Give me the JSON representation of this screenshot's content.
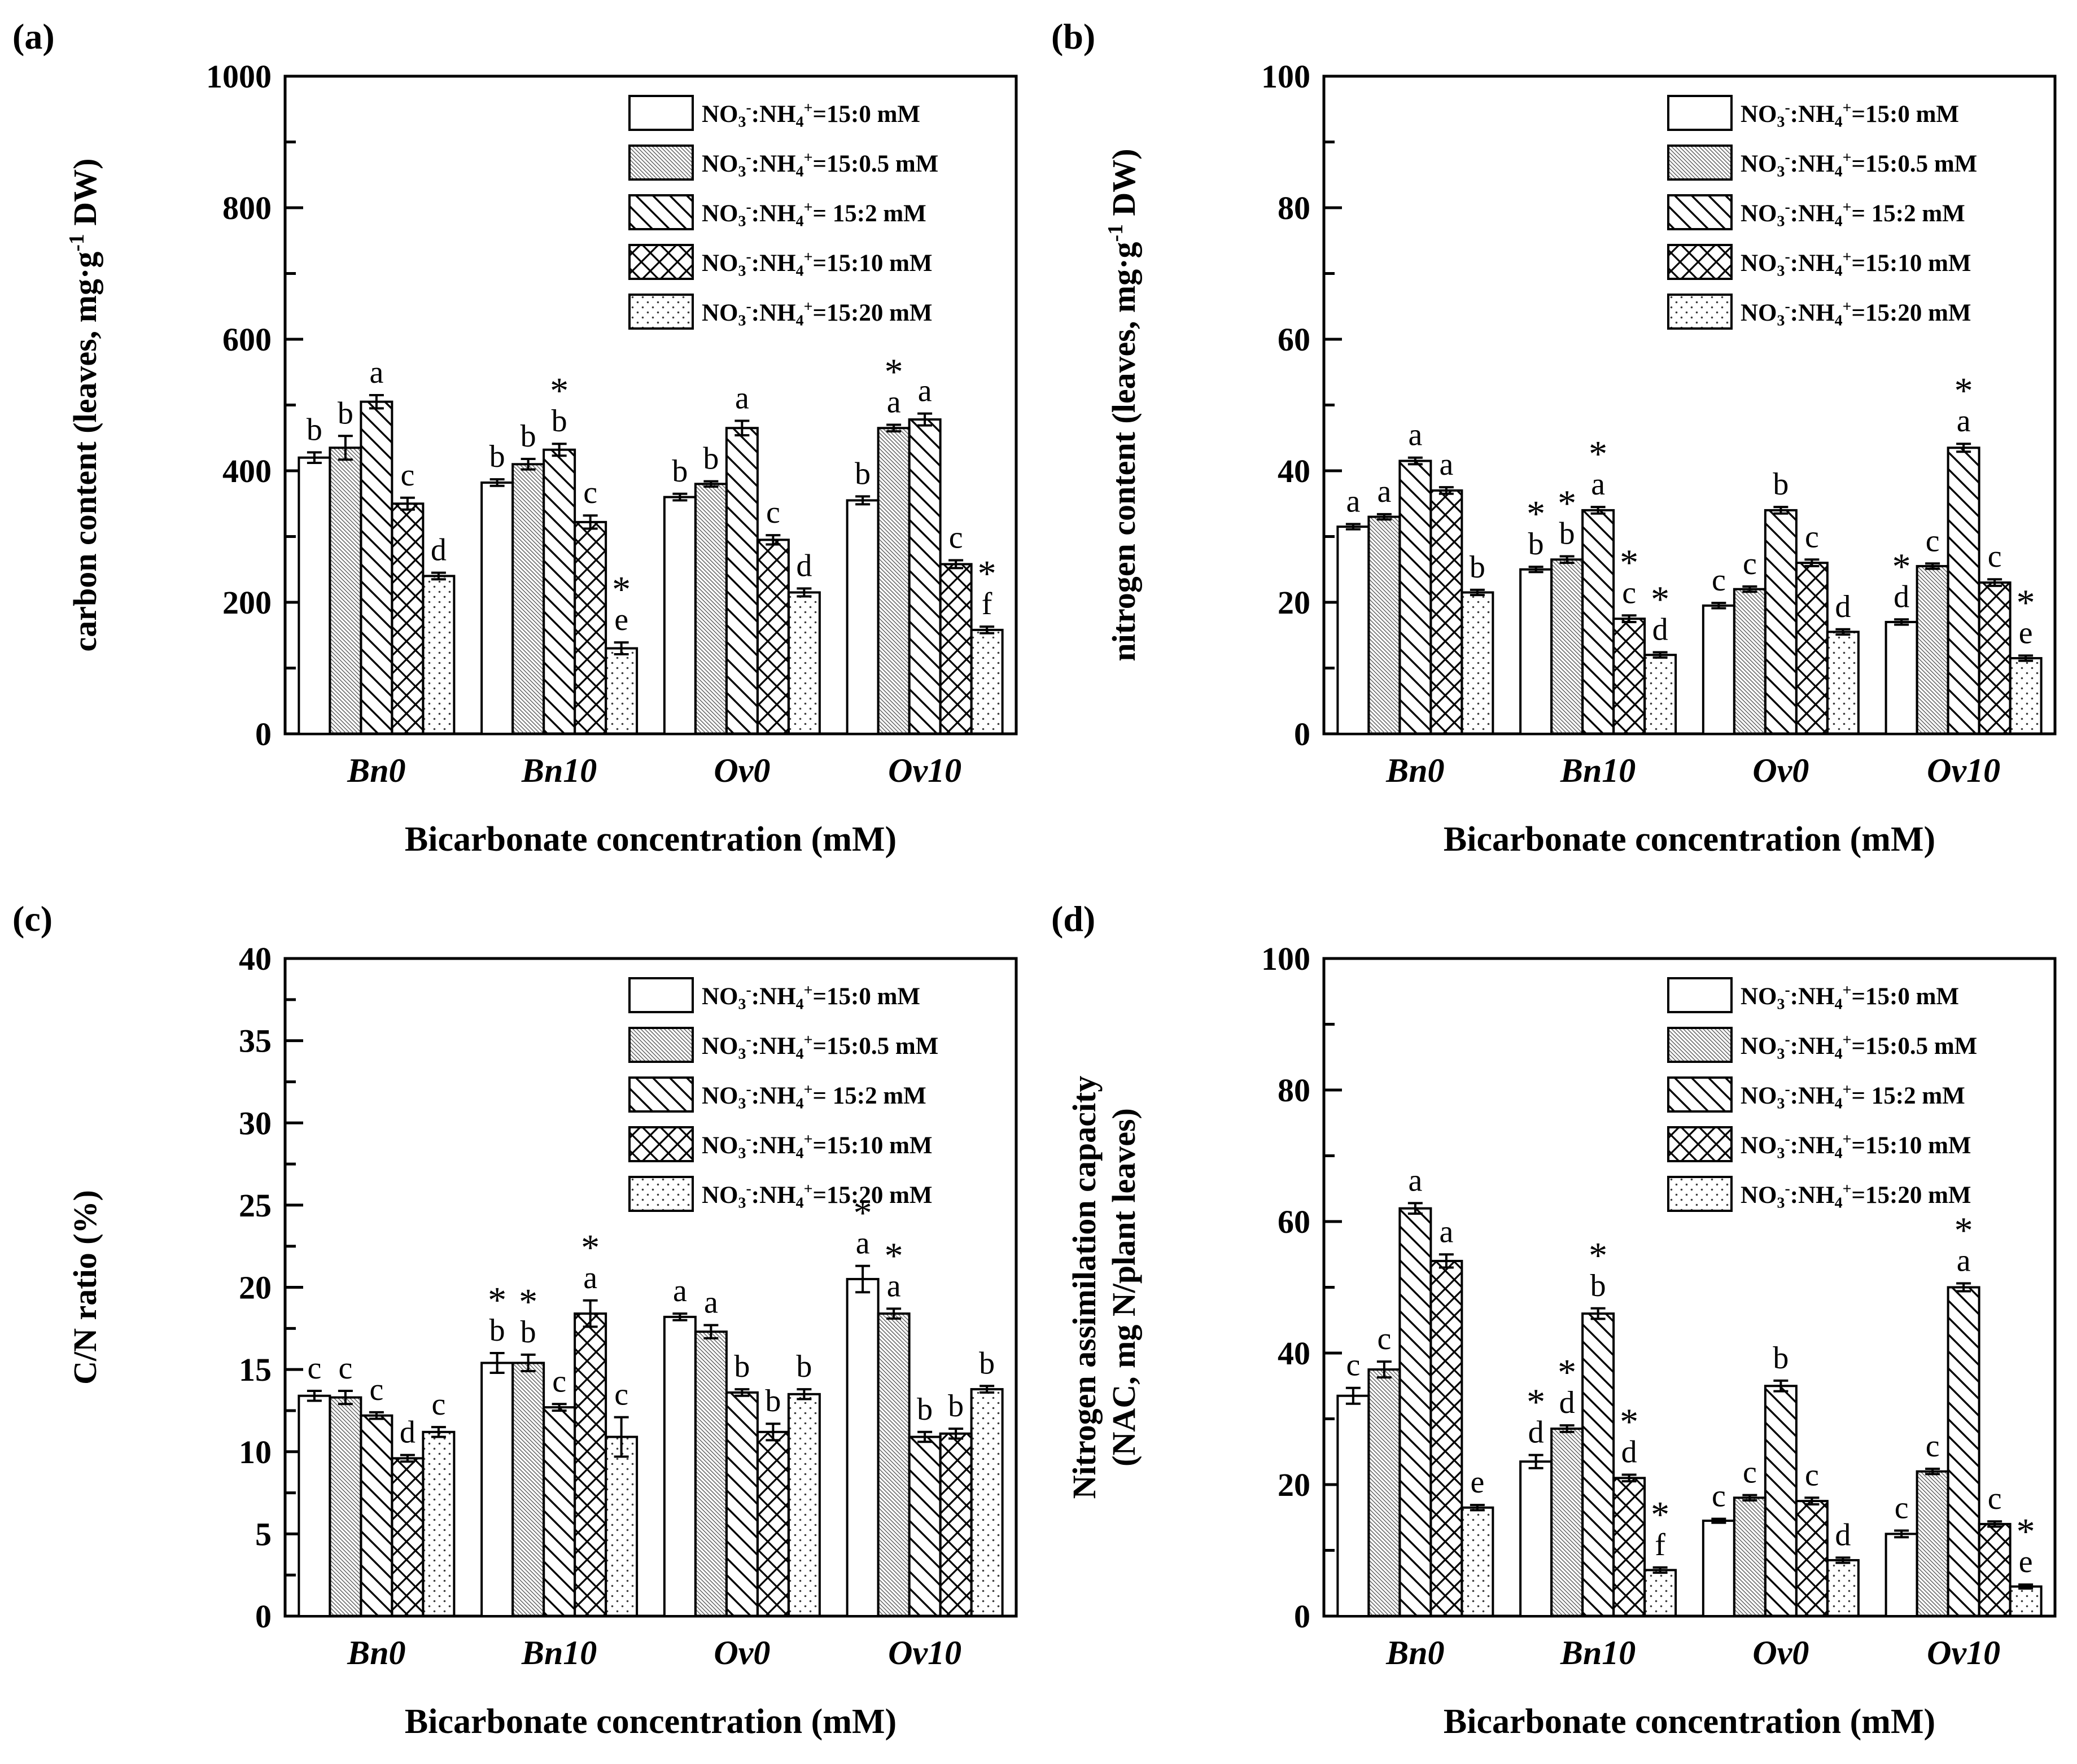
{
  "figure": {
    "x_axis_label": "Bicarbonate concentration (mM)",
    "groups": [
      "Bn0",
      "Bn10",
      "Ov0",
      "Ov10"
    ],
    "ink_color": "#000000",
    "background_color": "#ffffff",
    "legend": {
      "position": "top-right-inside",
      "items": [
        {
          "pattern": "blank",
          "text": "NO3-:NH4+=15:0 mM",
          "segments": [
            {
              "t": "NO"
            },
            {
              "t": "3",
              "sub": true
            },
            {
              "t": "-",
              "sup": true
            },
            {
              "t": ":NH"
            },
            {
              "t": "4",
              "sub": true
            },
            {
              "t": "+",
              "sup": true
            },
            {
              "t": "=15:0 mM"
            }
          ]
        },
        {
          "pattern": "fine",
          "text": "NO3-:NH4+=15:0.5 mM",
          "segments": [
            {
              "t": "NO"
            },
            {
              "t": "3",
              "sub": true
            },
            {
              "t": "-",
              "sup": true
            },
            {
              "t": ":NH"
            },
            {
              "t": "4",
              "sub": true
            },
            {
              "t": "+",
              "sup": true
            },
            {
              "t": "=15:0.5 mM"
            }
          ]
        },
        {
          "pattern": "diag",
          "text": "NO3-:NH4+= 15:2 mM",
          "segments": [
            {
              "t": "NO"
            },
            {
              "t": "3",
              "sub": true
            },
            {
              "t": "-",
              "sup": true
            },
            {
              "t": ":NH"
            },
            {
              "t": "4",
              "sub": true
            },
            {
              "t": "+",
              "sup": true
            },
            {
              "t": "= 15:2 mM"
            }
          ]
        },
        {
          "pattern": "cross",
          "text": "NO3-:NH4+=15:10 mM",
          "segments": [
            {
              "t": "NO"
            },
            {
              "t": "3",
              "sub": true
            },
            {
              "t": "-",
              "sup": true
            },
            {
              "t": ":NH"
            },
            {
              "t": "4",
              "sub": true
            },
            {
              "t": "+",
              "sup": true
            },
            {
              "t": "=15:10 mM"
            }
          ]
        },
        {
          "pattern": "dots",
          "text": "NO3-:NH4+=15:20 mM",
          "segments": [
            {
              "t": "NO"
            },
            {
              "t": "3",
              "sub": true
            },
            {
              "t": "-",
              "sup": true
            },
            {
              "t": ":NH"
            },
            {
              "t": "4",
              "sub": true
            },
            {
              "t": "+",
              "sup": true
            },
            {
              "t": "=15:20 mM"
            }
          ]
        }
      ]
    }
  },
  "chart_data": [
    {
      "id": "a",
      "type": "bar",
      "corner_label": "(a)",
      "xlabel": "Bicarbonate concentration (mM)",
      "ylabel_text": "carbon content (leaves, mg·g-1 DW)",
      "ylabel_lines": [
        [
          {
            "t": "carbon content (leaves, mg·g"
          },
          {
            "t": "-1",
            "sup": true
          },
          {
            "t": " DW)"
          }
        ]
      ],
      "ylim": [
        0,
        1000
      ],
      "yticks": [
        0,
        200,
        400,
        600,
        800,
        1000
      ],
      "yminor": 100,
      "categories": [
        "Bn0",
        "Bn10",
        "Ov0",
        "Ov10"
      ],
      "series": [
        {
          "name": "NO3-:NH4+=15:0 mM",
          "pattern": "blank",
          "values": [
            420,
            382,
            360,
            355
          ],
          "errors": [
            8,
            5,
            5,
            6
          ],
          "letters": [
            "b",
            "b",
            "b",
            "b"
          ]
        },
        {
          "name": "NO3-:NH4+=15:0.5 mM",
          "pattern": "fine",
          "values": [
            435,
            410,
            380,
            465
          ],
          "errors": [
            18,
            8,
            4,
            5
          ],
          "letters": [
            "b",
            "b",
            "b",
            "*a"
          ]
        },
        {
          "name": "NO3-:NH4+= 15:2 mM",
          "pattern": "diag",
          "values": [
            505,
            432,
            465,
            478
          ],
          "errors": [
            10,
            9,
            11,
            9
          ],
          "letters": [
            "a",
            "*b",
            "a",
            "a"
          ]
        },
        {
          "name": "NO3-:NH4+=15:10 mM",
          "pattern": "cross",
          "values": [
            350,
            322,
            295,
            258
          ],
          "errors": [
            9,
            10,
            7,
            6
          ],
          "letters": [
            "c",
            "c",
            "c",
            "c"
          ]
        },
        {
          "name": "NO3-:NH4+=15:20 mM",
          "pattern": "dots",
          "values": [
            240,
            130,
            215,
            158
          ],
          "errors": [
            5,
            9,
            6,
            5
          ],
          "letters": [
            "d",
            "*e",
            "d",
            "*f"
          ]
        }
      ]
    },
    {
      "id": "b",
      "type": "bar",
      "corner_label": "(b)",
      "xlabel": "Bicarbonate concentration (mM)",
      "ylabel_text": "nitrogen content (leaves, mg·g-1 DW)",
      "ylabel_lines": [
        [
          {
            "t": "nitrogen content (leaves, mg·g"
          },
          {
            "t": "-1",
            "sup": true
          },
          {
            "t": " DW)"
          }
        ]
      ],
      "ylim": [
        0,
        100
      ],
      "yticks": [
        0,
        20,
        40,
        60,
        80,
        100
      ],
      "yminor": 10,
      "categories": [
        "Bn0",
        "Bn10",
        "Ov0",
        "Ov10"
      ],
      "series": [
        {
          "name": "NO3-:NH4+=15:0 mM",
          "pattern": "blank",
          "values": [
            31.5,
            25,
            19.5,
            17
          ],
          "errors": [
            0.4,
            0.4,
            0.4,
            0.4
          ],
          "letters": [
            "a",
            "*b",
            "c",
            "*d"
          ]
        },
        {
          "name": "NO3-:NH4+=15:0.5 mM",
          "pattern": "fine",
          "values": [
            33,
            26.5,
            22,
            25.5
          ],
          "errors": [
            0.4,
            0.5,
            0.4,
            0.4
          ],
          "letters": [
            "a",
            "*b",
            "c",
            "c"
          ]
        },
        {
          "name": "NO3-:NH4+= 15:2 mM",
          "pattern": "diag",
          "values": [
            41.5,
            34,
            34,
            43.5
          ],
          "errors": [
            0.5,
            0.5,
            0.5,
            0.6
          ],
          "letters": [
            "a",
            "*a",
            "b",
            "*a"
          ]
        },
        {
          "name": "NO3-:NH4+=15:10 mM",
          "pattern": "cross",
          "values": [
            37,
            17.5,
            26,
            23
          ],
          "errors": [
            0.5,
            0.5,
            0.5,
            0.5
          ],
          "letters": [
            "a",
            "*c",
            "c",
            "c"
          ]
        },
        {
          "name": "NO3-:NH4+=15:20 mM",
          "pattern": "dots",
          "values": [
            21.5,
            12,
            15.5,
            11.5
          ],
          "errors": [
            0.4,
            0.4,
            0.4,
            0.4
          ],
          "letters": [
            "b",
            "*d",
            "d",
            "*e"
          ]
        }
      ]
    },
    {
      "id": "c",
      "type": "bar",
      "corner_label": "(c)",
      "xlabel": "Bicarbonate concentration (mM)",
      "ylabel_text": "C/N ratio (%)",
      "ylabel_lines": [
        [
          {
            "t": "C/N ratio (%)"
          }
        ]
      ],
      "ylim": [
        0,
        40
      ],
      "yticks": [
        0,
        5,
        10,
        15,
        20,
        25,
        30,
        35,
        40
      ],
      "yminor": 2.5,
      "categories": [
        "Bn0",
        "Bn10",
        "Ov0",
        "Ov10"
      ],
      "series": [
        {
          "name": "NO3-:NH4+=15:0 mM",
          "pattern": "blank",
          "values": [
            13.4,
            15.4,
            18.2,
            20.5
          ],
          "errors": [
            0.3,
            0.6,
            0.2,
            0.8
          ],
          "letters": [
            "c",
            "*b",
            "a",
            "*a"
          ]
        },
        {
          "name": "NO3-:NH4+=15:0.5 mM",
          "pattern": "fine",
          "values": [
            13.3,
            15.4,
            17.3,
            18.4
          ],
          "errors": [
            0.4,
            0.5,
            0.4,
            0.3
          ],
          "letters": [
            "c",
            "*b",
            "a",
            "*a"
          ]
        },
        {
          "name": "NO3-:NH4+= 15:2 mM",
          "pattern": "diag",
          "values": [
            12.2,
            12.7,
            13.6,
            10.9
          ],
          "errors": [
            0.2,
            0.2,
            0.2,
            0.3
          ],
          "letters": [
            "c",
            "c",
            "b",
            "b"
          ]
        },
        {
          "name": "NO3-:NH4+=15:10 mM",
          "pattern": "cross",
          "values": [
            9.6,
            18.4,
            11.2,
            11.1
          ],
          "errors": [
            0.2,
            0.8,
            0.5,
            0.3
          ],
          "letters": [
            "d",
            "*a",
            "b",
            "b"
          ]
        },
        {
          "name": "NO3-:NH4+=15:20 mM",
          "pattern": "dots",
          "values": [
            11.2,
            10.9,
            13.5,
            13.8
          ],
          "errors": [
            0.3,
            1.2,
            0.3,
            0.2
          ],
          "letters": [
            "c",
            "c",
            "b",
            "b"
          ]
        }
      ]
    },
    {
      "id": "d",
      "type": "bar",
      "corner_label": "(d)",
      "xlabel": "Bicarbonate concentration (mM)",
      "ylabel_text": "Nitrogen assimilation capacity (NAC, mg N/plant leaves)",
      "ylabel_lines": [
        [
          {
            "t": "Nitrogen assimilation capacity"
          }
        ],
        [
          {
            "t": "(NAC, mg N/plant leaves)"
          }
        ]
      ],
      "ylim": [
        0,
        100
      ],
      "yticks": [
        0,
        20,
        40,
        60,
        80,
        100
      ],
      "yminor": 10,
      "categories": [
        "Bn0",
        "Bn10",
        "Ov0",
        "Ov10"
      ],
      "series": [
        {
          "name": "NO3-:NH4+=15:0 mM",
          "pattern": "blank",
          "values": [
            33.5,
            23.5,
            14.5,
            12.5
          ],
          "errors": [
            1.2,
            1.0,
            0.3,
            0.5
          ],
          "letters": [
            "c",
            "*d",
            "c",
            "c"
          ]
        },
        {
          "name": "NO3-:NH4+=15:0.5 mM",
          "pattern": "fine",
          "values": [
            37.5,
            28.5,
            18,
            22
          ],
          "errors": [
            1.2,
            0.5,
            0.4,
            0.4
          ],
          "letters": [
            "c",
            "*d",
            "c",
            "c"
          ]
        },
        {
          "name": "NO3-:NH4+= 15:2 mM",
          "pattern": "diag",
          "values": [
            62,
            46,
            35,
            50
          ],
          "errors": [
            0.8,
            0.8,
            0.8,
            0.6
          ],
          "letters": [
            "a",
            "*b",
            "b",
            "*a"
          ]
        },
        {
          "name": "NO3-:NH4+=15:10 mM",
          "pattern": "cross",
          "values": [
            54,
            21,
            17.5,
            14
          ],
          "errors": [
            1.0,
            0.5,
            0.5,
            0.4
          ],
          "letters": [
            "a",
            "*d",
            "c",
            "c"
          ]
        },
        {
          "name": "NO3-:NH4+=15:20 mM",
          "pattern": "dots",
          "values": [
            16.5,
            7,
            8.5,
            4.5
          ],
          "errors": [
            0.4,
            0.4,
            0.4,
            0.3
          ],
          "letters": [
            "e",
            "*f",
            "d",
            "*e"
          ]
        }
      ]
    }
  ]
}
